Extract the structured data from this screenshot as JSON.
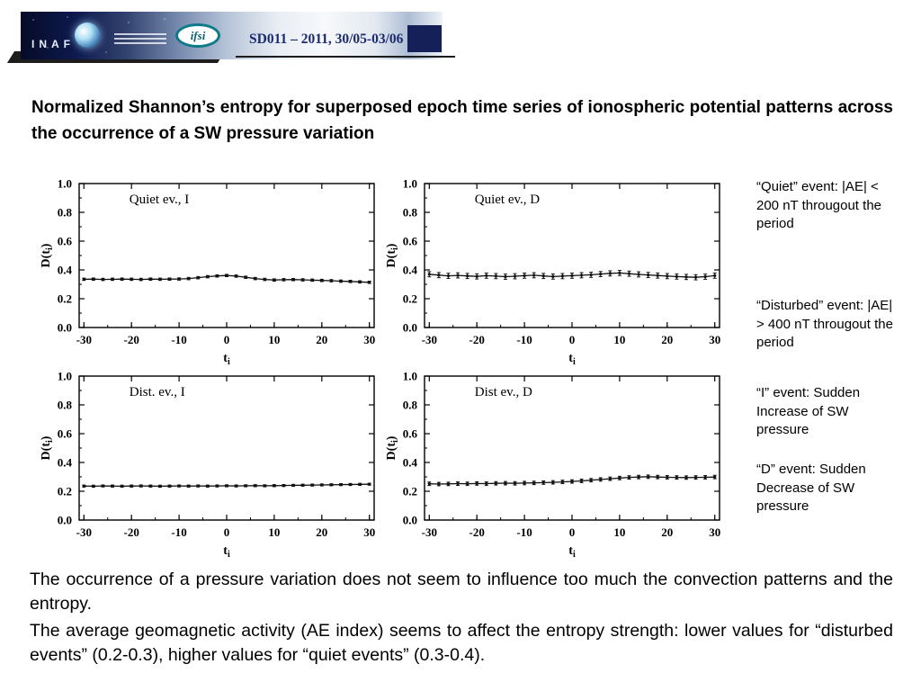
{
  "header": {
    "logo_text": "INAF",
    "ifsi_label": "ifsi",
    "session": "SD011 – 2011, 30/05-03/06"
  },
  "title": "Normalized Shannon’s entropy for superposed epoch time series of ionospheric potential patterns across the occurrence of a SW pressure variation",
  "annotations": [
    "“Quiet” event: |AE| < 200 nT througout the period",
    "“Disturbed” event: |AE| > 400 nT througout the period",
    "“I” event: Sudden Increase of SW pressure",
    "“D” event: Sudden Decrease of SW pressure"
  ],
  "footer_paragraphs": [
    "The occurrence of a pressure variation does not seem to influence too much the convection patterns and the entropy.",
    "The average geomagnetic activity (AE index) seems to affect the entropy strength: lower values for “disturbed events” (0.2-0.3), higher values for “quiet events” (0.3-0.4)."
  ],
  "colors": {
    "session_navy": "#1c2a6e",
    "plot_ink": "#111111"
  },
  "chart_data": [
    {
      "type": "line",
      "label": "Quiet ev., I",
      "xlabel": "t_i",
      "ylabel": "D(t_i)",
      "xlim": [
        -31,
        31
      ],
      "ylim": [
        0,
        1.0
      ],
      "xticks": [
        -30,
        -20,
        -10,
        0,
        10,
        20,
        30
      ],
      "yticks": [
        0,
        0.2,
        0.4,
        0.6,
        0.8,
        1.0
      ],
      "x_start": -30,
      "x_step": 2,
      "values": [
        0.335,
        0.336,
        0.334,
        0.335,
        0.336,
        0.335,
        0.334,
        0.336,
        0.335,
        0.336,
        0.337,
        0.34,
        0.346,
        0.353,
        0.358,
        0.361,
        0.357,
        0.349,
        0.34,
        0.334,
        0.33,
        0.332,
        0.333,
        0.331,
        0.329,
        0.327,
        0.325,
        0.322,
        0.32,
        0.317,
        0.314
      ],
      "error": 0.008
    },
    {
      "type": "line",
      "label": "Quiet ev., D",
      "xlabel": "t_i",
      "ylabel": "D(t_i)",
      "xlim": [
        -31,
        31
      ],
      "ylim": [
        0,
        1.0
      ],
      "xticks": [
        -30,
        -20,
        -10,
        0,
        10,
        20,
        30
      ],
      "yticks": [
        0,
        0.2,
        0.4,
        0.6,
        0.8,
        1.0
      ],
      "x_start": -30,
      "x_step": 2,
      "values": [
        0.37,
        0.364,
        0.359,
        0.362,
        0.358,
        0.355,
        0.36,
        0.357,
        0.353,
        0.356,
        0.36,
        0.363,
        0.358,
        0.354,
        0.357,
        0.36,
        0.363,
        0.366,
        0.371,
        0.376,
        0.379,
        0.374,
        0.369,
        0.365,
        0.361,
        0.357,
        0.354,
        0.351,
        0.349,
        0.353,
        0.36
      ],
      "error": 0.018
    },
    {
      "type": "line",
      "label": "Dist. ev., I",
      "xlabel": "t_i",
      "ylabel": "D(t_i)",
      "xlim": [
        -31,
        31
      ],
      "ylim": [
        0,
        1.0
      ],
      "xticks": [
        -30,
        -20,
        -10,
        0,
        10,
        20,
        30
      ],
      "yticks": [
        0,
        0.2,
        0.4,
        0.6,
        0.8,
        1.0
      ],
      "x_start": -30,
      "x_step": 2,
      "values": [
        0.236,
        0.235,
        0.237,
        0.236,
        0.235,
        0.236,
        0.237,
        0.236,
        0.235,
        0.236,
        0.237,
        0.236,
        0.237,
        0.236,
        0.237,
        0.238,
        0.237,
        0.238,
        0.239,
        0.238,
        0.239,
        0.24,
        0.241,
        0.242,
        0.243,
        0.244,
        0.245,
        0.246,
        0.247,
        0.248,
        0.249
      ],
      "error": 0.007
    },
    {
      "type": "line",
      "label": "Dist ev., D",
      "xlabel": "t_i",
      "ylabel": "D(t_i)",
      "xlim": [
        -31,
        31
      ],
      "ylim": [
        0,
        1.0
      ],
      "xticks": [
        -30,
        -20,
        -10,
        0,
        10,
        20,
        30
      ],
      "yticks": [
        0,
        0.2,
        0.4,
        0.6,
        0.8,
        1.0
      ],
      "x_start": -30,
      "x_step": 2,
      "values": [
        0.252,
        0.25,
        0.251,
        0.253,
        0.252,
        0.254,
        0.253,
        0.255,
        0.256,
        0.255,
        0.257,
        0.258,
        0.26,
        0.262,
        0.265,
        0.268,
        0.272,
        0.277,
        0.282,
        0.287,
        0.292,
        0.296,
        0.299,
        0.301,
        0.299,
        0.297,
        0.296,
        0.295,
        0.296,
        0.297,
        0.299
      ],
      "error": 0.012
    }
  ]
}
